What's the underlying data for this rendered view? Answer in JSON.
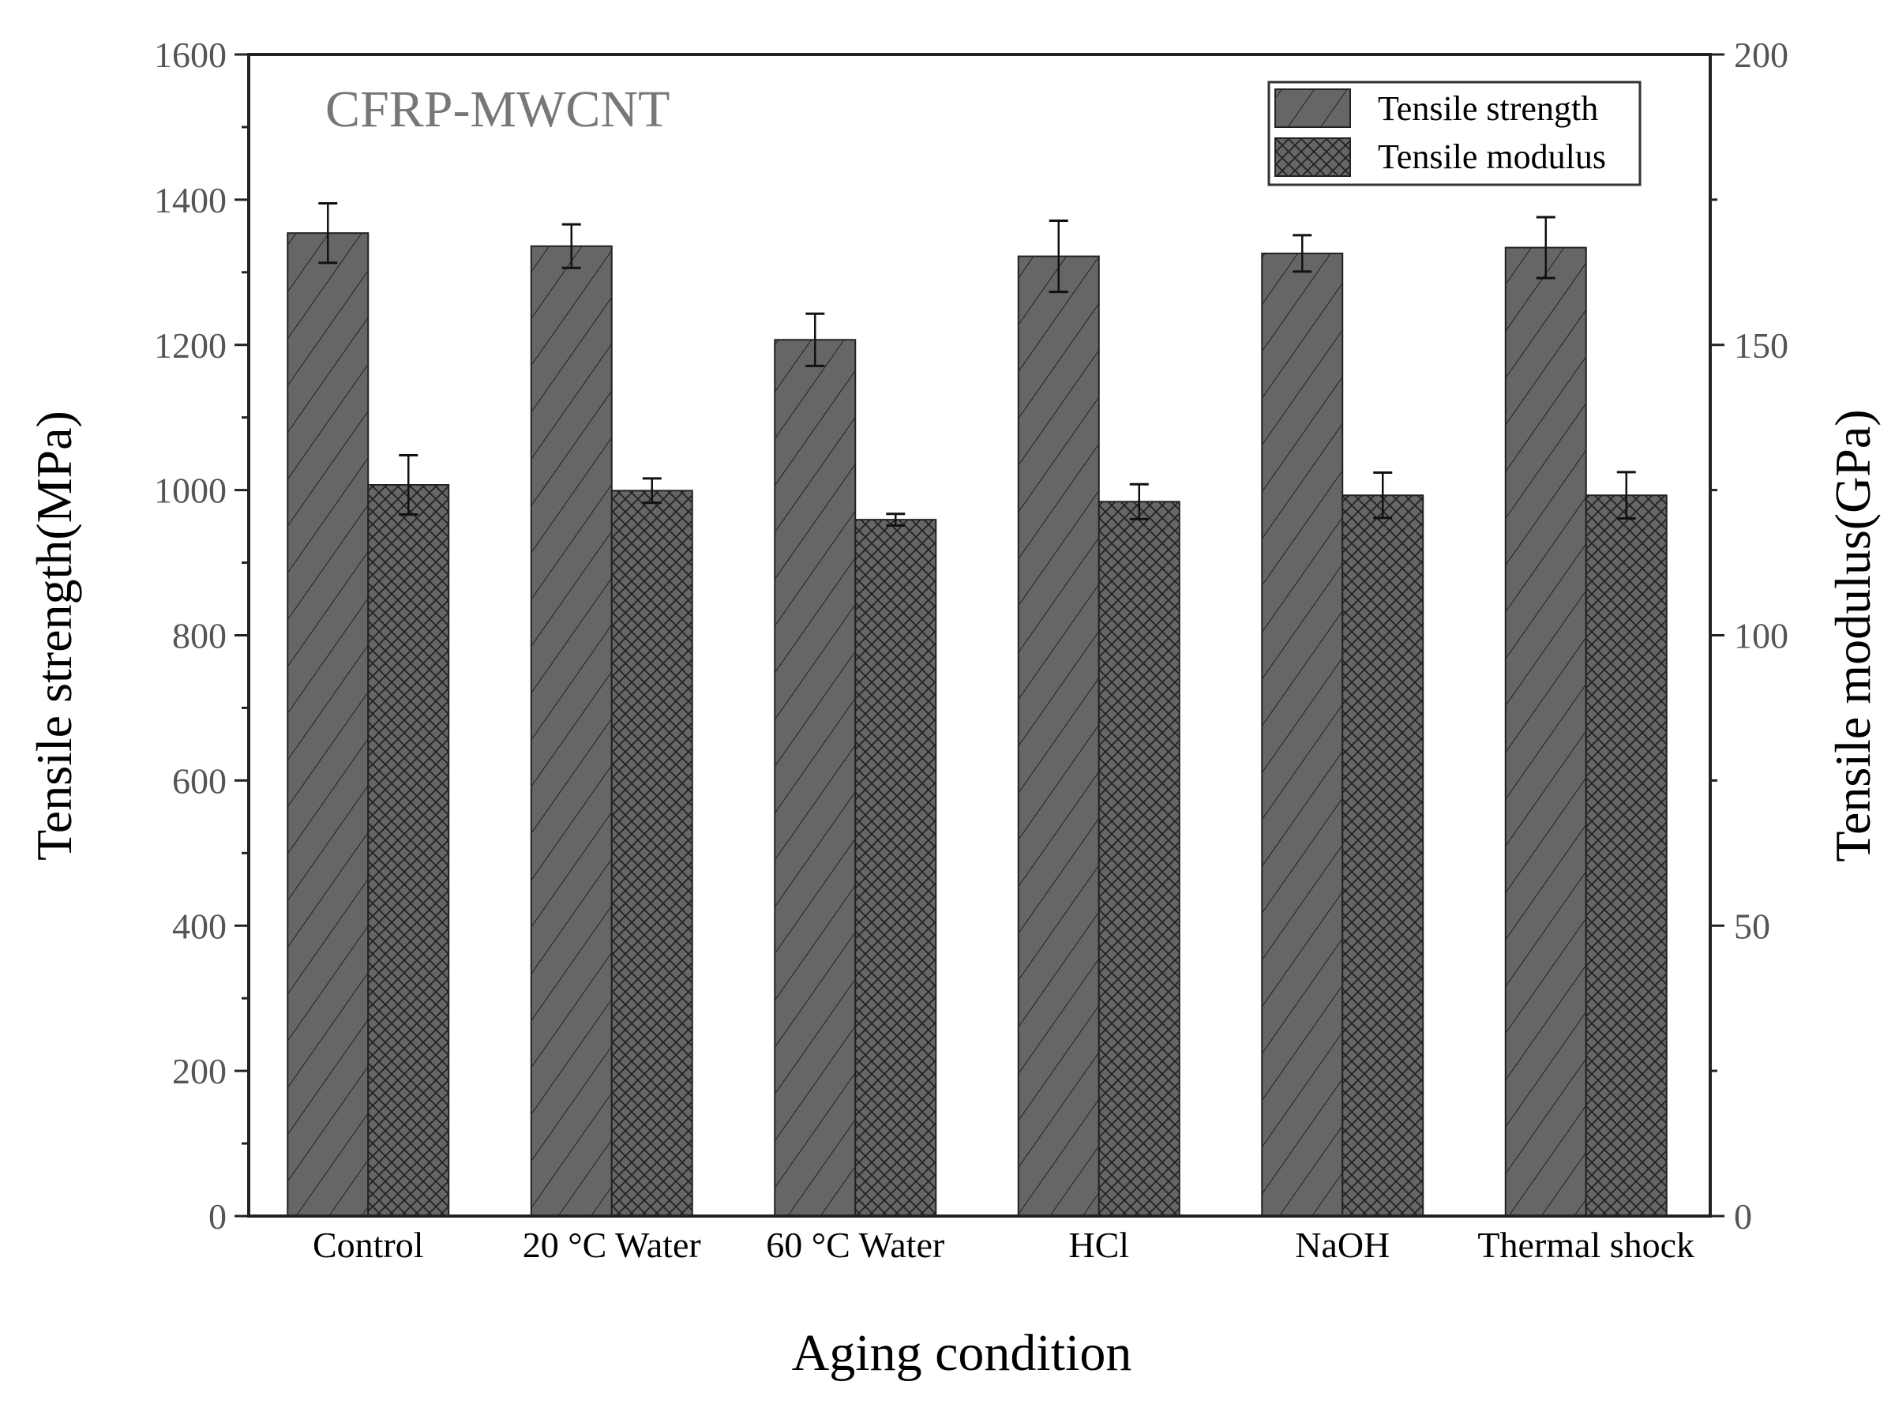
{
  "chart_data": {
    "type": "bar",
    "annotation": "CFRP-MWCNT",
    "xlabel": "Aging condition",
    "ylabel": "Tensile strength(MPa)",
    "y2label": "Tensile modulus(GPa)",
    "ylim": [
      0,
      1600
    ],
    "y2lim": [
      0,
      200
    ],
    "yticks": [
      0,
      200,
      400,
      600,
      800,
      1000,
      1200,
      1400,
      1600
    ],
    "y2ticks": [
      0,
      50,
      100,
      150,
      200
    ],
    "categories": [
      "Control",
      "20 °C Water",
      "60 °C Water",
      "HCl",
      "NaOH",
      "Thermal shock"
    ],
    "legend_position": "top-right",
    "grid": false,
    "series": [
      {
        "name": "Tensile strength",
        "axis": "left",
        "pattern": "diagonal-hatch",
        "color": "#666666",
        "values": [
          1354,
          1336,
          1207,
          1322,
          1326,
          1334
        ],
        "errors": [
          41,
          30,
          36,
          49,
          25,
          42
        ]
      },
      {
        "name": "Tensile modulus",
        "axis": "right",
        "pattern": "cross-hatch",
        "color": "#666666",
        "values": [
          125.9,
          124.9,
          119.9,
          123.0,
          124.1,
          124.1
        ],
        "errors": [
          5.1,
          2.1,
          1.0,
          3.0,
          3.9,
          4.0
        ]
      }
    ]
  }
}
